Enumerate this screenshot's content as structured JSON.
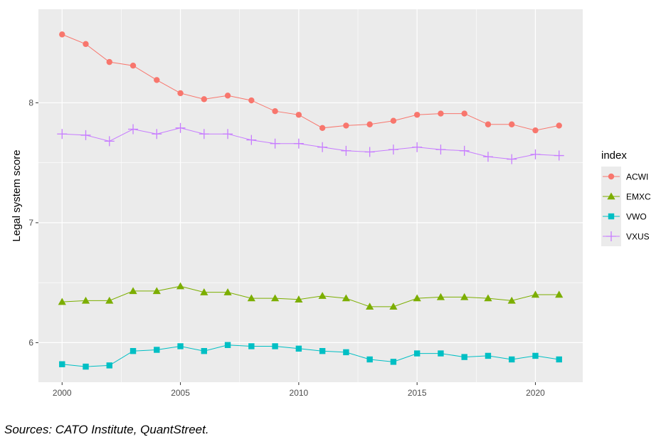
{
  "chart_data": {
    "type": "line",
    "xlabel": "",
    "ylabel": "Legal system score",
    "xlim": [
      1999.0,
      2022.0
    ],
    "ylim": [
      5.67,
      8.78
    ],
    "x": [
      2000,
      2001,
      2002,
      2003,
      2004,
      2005,
      2006,
      2007,
      2008,
      2009,
      2010,
      2011,
      2012,
      2013,
      2014,
      2015,
      2016,
      2017,
      2018,
      2019,
      2020,
      2021
    ],
    "xticks": [
      2000,
      2005,
      2010,
      2015,
      2020
    ],
    "yticks": [
      6,
      7,
      8
    ],
    "grid": true,
    "legend_title": "index",
    "legend_position": "right",
    "series": [
      {
        "name": "ACWI",
        "color": "#F8766D",
        "marker": "circle",
        "values": [
          8.57,
          8.49,
          8.34,
          8.31,
          8.19,
          8.08,
          8.03,
          8.06,
          8.02,
          7.93,
          7.9,
          7.79,
          7.81,
          7.82,
          7.85,
          7.9,
          7.91,
          7.91,
          7.82,
          7.82,
          7.77,
          7.81
        ]
      },
      {
        "name": "EMXC",
        "color": "#7CAE00",
        "marker": "triangle",
        "values": [
          6.34,
          6.35,
          6.35,
          6.43,
          6.43,
          6.47,
          6.42,
          6.42,
          6.37,
          6.37,
          6.36,
          6.39,
          6.37,
          6.3,
          6.3,
          6.37,
          6.38,
          6.38,
          6.37,
          6.35,
          6.4,
          6.4
        ]
      },
      {
        "name": "VWO",
        "color": "#00BFC4",
        "marker": "square",
        "values": [
          5.82,
          5.8,
          5.81,
          5.93,
          5.94,
          5.97,
          5.93,
          5.98,
          5.97,
          5.97,
          5.95,
          5.93,
          5.92,
          5.86,
          5.84,
          5.91,
          5.91,
          5.88,
          5.89,
          5.86,
          5.89,
          5.86
        ]
      },
      {
        "name": "VXUS",
        "color": "#C77CFF",
        "marker": "plus",
        "values": [
          7.74,
          7.73,
          7.68,
          7.78,
          7.74,
          7.79,
          7.74,
          7.74,
          7.69,
          7.66,
          7.66,
          7.63,
          7.6,
          7.59,
          7.61,
          7.63,
          7.61,
          7.6,
          7.55,
          7.53,
          7.57,
          7.56
        ]
      }
    ]
  },
  "caption": "Sources: CATO Institute, QuantStreet."
}
